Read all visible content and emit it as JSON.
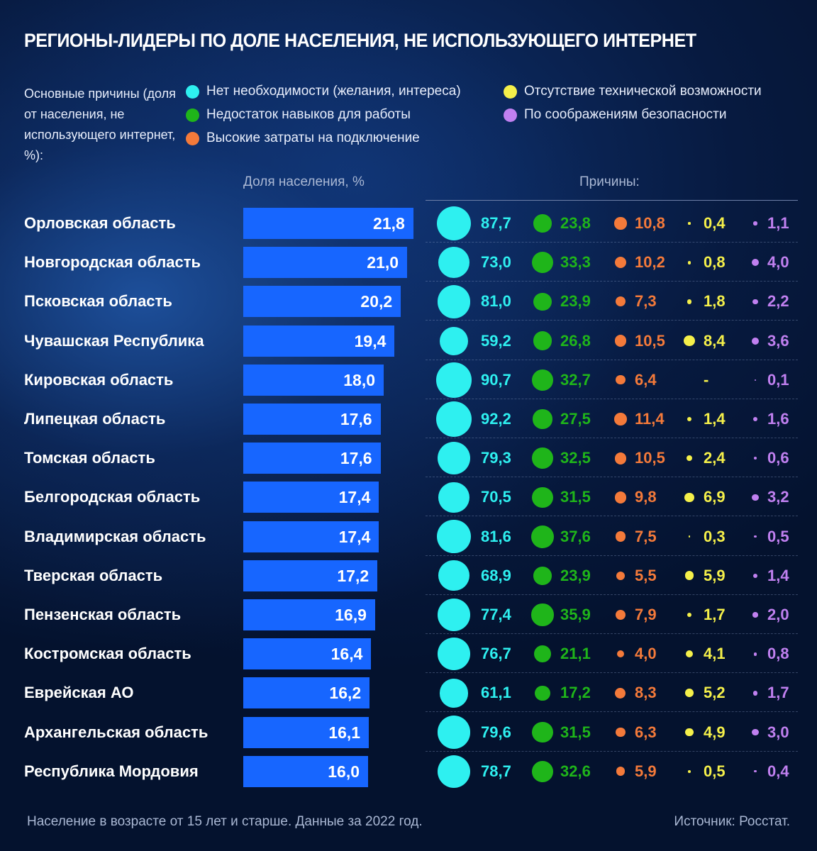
{
  "title": "РЕГИОНЫ-ЛИДЕРЫ ПО ДОЛЕ НАСЕЛЕНИЯ, НЕ ИСПОЛЬЗУЮЩЕГО ИНТЕРНЕТ",
  "legend_intro": "Основные причины (доля от населения, не использующего интернет, %):",
  "legend": [
    {
      "label": "Нет необходимости (желания, интереса)",
      "color": "#2ef0f0"
    },
    {
      "label": "Недостаток навыков для работы",
      "color": "#1fb51a"
    },
    {
      "label": "Высокие затраты на подключение",
      "color": "#f47a3a"
    },
    {
      "label": "Отсутствие технической возможности",
      "color": "#f5f04a"
    },
    {
      "label": "По соображениям безопасности",
      "color": "#c080f0"
    }
  ],
  "column_headers": {
    "share": "Доля населения, %",
    "reasons": "Причины:"
  },
  "footer": {
    "note": "Население в возрасте от 15 лет и старше. Данные за 2022 год.",
    "source": "Источник: Росстат."
  },
  "chart_data": {
    "type": "table",
    "title": "РЕГИОНЫ-ЛИДЕРЫ ПО ДОЛЕ НАСЕЛЕНИЯ, НЕ ИСПОЛЬЗУЮЩЕГО ИНТЕРНЕТ",
    "categories": [
      "Орловская область",
      "Новгородская область",
      "Псковская область",
      "Чувашская Республика",
      "Кировская область",
      "Липецкая область",
      "Томская область",
      "Белгородская область",
      "Владимирская область",
      "Тверская область",
      "Пензенская область",
      "Костромская область",
      "Еврейская АО",
      "Архангельская область",
      "Республика Мордовия"
    ],
    "share": {
      "name": "Доля населения, %",
      "values": [
        21.8,
        21.0,
        20.2,
        19.4,
        18.0,
        17.6,
        17.6,
        17.4,
        17.4,
        17.2,
        16.9,
        16.4,
        16.2,
        16.1,
        16.0
      ],
      "labels": [
        "21,8",
        "21,0",
        "20,2",
        "19,4",
        "18,0",
        "17,6",
        "17,6",
        "17,4",
        "17,4",
        "17,2",
        "16,9",
        "16,4",
        "16,2",
        "16,1",
        "16,0"
      ]
    },
    "series": [
      {
        "name": "Нет необходимости (желания, интереса)",
        "color": "#2ef0f0",
        "values": [
          87.7,
          73.0,
          81.0,
          59.2,
          90.7,
          92.2,
          79.3,
          70.5,
          81.6,
          68.9,
          77.4,
          76.7,
          61.1,
          79.6,
          78.7
        ],
        "labels": [
          "87,7",
          "73,0",
          "81,0",
          "59,2",
          "90,7",
          "92,2",
          "79,3",
          "70,5",
          "81,6",
          "68,9",
          "77,4",
          "76,7",
          "61,1",
          "79,6",
          "78,7"
        ]
      },
      {
        "name": "Недостаток навыков для работы",
        "color": "#1fb51a",
        "values": [
          23.8,
          33.3,
          23.9,
          26.8,
          32.7,
          27.5,
          32.5,
          31.5,
          37.6,
          23.9,
          35.9,
          21.1,
          17.2,
          31.5,
          32.6
        ],
        "labels": [
          "23,8",
          "33,3",
          "23,9",
          "26,8",
          "32,7",
          "27,5",
          "32,5",
          "31,5",
          "37,6",
          "23,9",
          "35,9",
          "21,1",
          "17,2",
          "31,5",
          "32,6"
        ]
      },
      {
        "name": "Высокие затраты на подключение",
        "color": "#f47a3a",
        "values": [
          10.8,
          10.2,
          7.3,
          10.5,
          6.4,
          11.4,
          10.5,
          9.8,
          7.5,
          5.5,
          7.9,
          4.0,
          8.3,
          6.3,
          5.9
        ],
        "labels": [
          "10,8",
          "10,2",
          "7,3",
          "10,5",
          "6,4",
          "11,4",
          "10,5",
          "9,8",
          "7,5",
          "5,5",
          "7,9",
          "4,0",
          "8,3",
          "6,3",
          "5,9"
        ]
      },
      {
        "name": "Отсутствие технической возможности",
        "color": "#f5f04a",
        "values": [
          0.4,
          0.8,
          1.8,
          8.4,
          null,
          1.4,
          2.4,
          6.9,
          0.3,
          5.9,
          1.7,
          4.1,
          5.2,
          4.9,
          0.5
        ],
        "labels": [
          "0,4",
          "0,8",
          "1,8",
          "8,4",
          "-",
          "1,4",
          "2,4",
          "6,9",
          "0,3",
          "5,9",
          "1,7",
          "4,1",
          "5,2",
          "4,9",
          "0,5"
        ]
      },
      {
        "name": "По соображениям безопасности",
        "color": "#c080f0",
        "values": [
          1.1,
          4.0,
          2.2,
          3.6,
          0.1,
          1.6,
          0.6,
          3.2,
          0.5,
          1.4,
          2.0,
          0.8,
          1.7,
          3.0,
          0.4
        ],
        "labels": [
          "1,1",
          "4,0",
          "2,2",
          "3,6",
          "0,1",
          "1,6",
          "0,6",
          "3,2",
          "0,5",
          "1,4",
          "2,0",
          "0,8",
          "1,7",
          "3,0",
          "0,4"
        ]
      }
    ],
    "bubble_scale": "area"
  }
}
